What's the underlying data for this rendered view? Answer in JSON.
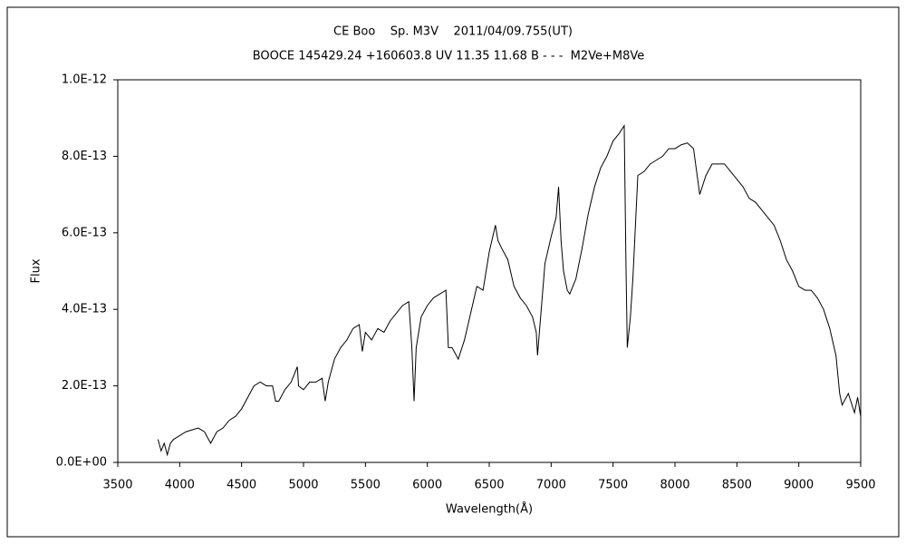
{
  "chart_data": {
    "type": "line",
    "title": "CE Boo    Sp. M3V    2011/04/09.755(UT)",
    "subtitle": "BOOCE 145429.24 +160603.8 UV 11.35 11.68 B - - -  M2Ve+M8Ve",
    "x_label": "Wavelength(Å)",
    "y_label": "Flux",
    "xlim": [
      3500,
      9500
    ],
    "xticks": [
      3500,
      4000,
      4500,
      5000,
      5500,
      6000,
      6500,
      7000,
      7500,
      8000,
      8500,
      9000,
      9500
    ],
    "ylim": [
      0,
      1e-12
    ],
    "yticks": [
      {
        "value": 0,
        "label": "0.0E+00"
      },
      {
        "value": 2e-13,
        "label": "2.0E-13"
      },
      {
        "value": 4e-13,
        "label": "4.0E-13"
      },
      {
        "value": 6e-13,
        "label": "6.0E-13"
      },
      {
        "value": 8e-13,
        "label": "8.0E-13"
      },
      {
        "value": 1e-12,
        "label": "1.0E-12"
      }
    ],
    "grid": false,
    "color": "#000000",
    "x": [
      3825,
      3850,
      3875,
      3900,
      3925,
      3950,
      4000,
      4050,
      4100,
      4150,
      4200,
      4250,
      4300,
      4350,
      4400,
      4450,
      4500,
      4550,
      4600,
      4650,
      4700,
      4750,
      4775,
      4800,
      4850,
      4900,
      4950,
      4960,
      5000,
      5050,
      5100,
      5150,
      5175,
      5200,
      5250,
      5300,
      5350,
      5400,
      5450,
      5475,
      5500,
      5550,
      5600,
      5650,
      5700,
      5750,
      5800,
      5850,
      5875,
      5893,
      5910,
      5950,
      6000,
      6050,
      6100,
      6150,
      6170,
      6200,
      6250,
      6300,
      6350,
      6400,
      6450,
      6500,
      6550,
      6570,
      6600,
      6650,
      6700,
      6750,
      6800,
      6850,
      6880,
      6890,
      6920,
      6950,
      7000,
      7040,
      7060,
      7080,
      7100,
      7130,
      7150,
      7200,
      7250,
      7300,
      7350,
      7400,
      7450,
      7500,
      7550,
      7590,
      7605,
      7615,
      7640,
      7660,
      7700,
      7750,
      7800,
      7850,
      7900,
      7950,
      8000,
      8050,
      8100,
      8150,
      8200,
      8250,
      8300,
      8350,
      8400,
      8450,
      8500,
      8550,
      8600,
      8650,
      8700,
      8750,
      8800,
      8850,
      8900,
      8950,
      9000,
      9050,
      9100,
      9150,
      9200,
      9250,
      9300,
      9330,
      9350,
      9400,
      9450,
      9475,
      9500
    ],
    "values": [
      6e-14,
      3e-14,
      5e-14,
      2e-14,
      5e-14,
      6e-14,
      7e-14,
      8e-14,
      8.5e-14,
      9e-14,
      8e-14,
      5e-14,
      8e-14,
      9e-14,
      1.1e-13,
      1.2e-13,
      1.4e-13,
      1.7e-13,
      2e-13,
      2.1e-13,
      2e-13,
      2e-13,
      1.6e-13,
      1.6e-13,
      1.9e-13,
      2.1e-13,
      2.5e-13,
      2e-13,
      1.9e-13,
      2.1e-13,
      2.1e-13,
      2.2e-13,
      1.6e-13,
      2.1e-13,
      2.7e-13,
      3e-13,
      3.2e-13,
      3.5e-13,
      3.6e-13,
      2.9e-13,
      3.4e-13,
      3.2e-13,
      3.5e-13,
      3.4e-13,
      3.7e-13,
      3.9e-13,
      4.1e-13,
      4.2e-13,
      3e-13,
      1.6e-13,
      3e-13,
      3.8e-13,
      4.1e-13,
      4.3e-13,
      4.4e-13,
      4.5e-13,
      3e-13,
      3e-13,
      2.7e-13,
      3.2e-13,
      3.9e-13,
      4.6e-13,
      4.5e-13,
      5.5e-13,
      6.2e-13,
      5.8e-13,
      5.6e-13,
      5.3e-13,
      4.6e-13,
      4.3e-13,
      4.1e-13,
      3.8e-13,
      3.4e-13,
      2.8e-13,
      4e-13,
      5.2e-13,
      5.9e-13,
      6.4e-13,
      7.2e-13,
      5.8e-13,
      5e-13,
      4.5e-13,
      4.4e-13,
      4.8e-13,
      5.6e-13,
      6.5e-13,
      7.2e-13,
      7.7e-13,
      8e-13,
      8.4e-13,
      8.6e-13,
      8.8e-13,
      5e-13,
      3e-13,
      3.8e-13,
      4.8e-13,
      7.5e-13,
      7.6e-13,
      7.8e-13,
      7.9e-13,
      8e-13,
      8.2e-13,
      8.2e-13,
      8.3e-13,
      8.35e-13,
      8.2e-13,
      7e-13,
      7.5e-13,
      7.8e-13,
      7.8e-13,
      7.8e-13,
      7.6e-13,
      7.4e-13,
      7.2e-13,
      6.9e-13,
      6.8e-13,
      6.6e-13,
      6.4e-13,
      6.2e-13,
      5.8e-13,
      5.3e-13,
      5e-13,
      4.6e-13,
      4.5e-13,
      4.5e-13,
      4.3e-13,
      4e-13,
      3.5e-13,
      2.8e-13,
      1.8e-13,
      1.5e-13,
      1.8e-13,
      1.3e-13,
      1.7e-13,
      1.2e-13
    ]
  }
}
